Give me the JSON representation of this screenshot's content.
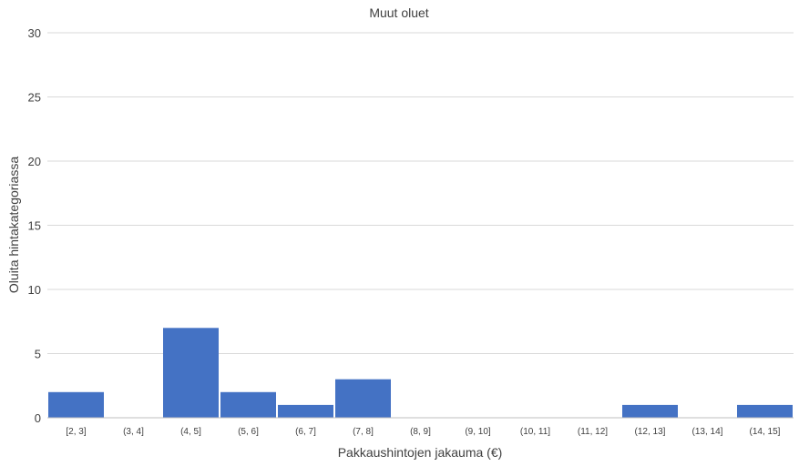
{
  "chart_data": {
    "type": "bar",
    "title": "Muut oluet",
    "xlabel": "Pakkaushintojen jakauma (€)",
    "ylabel": "Oluita hintakategoriassa",
    "categories": [
      "[2, 3]",
      "(3, 4]",
      "(4, 5]",
      "(5, 6]",
      "(6, 7]",
      "(7, 8]",
      "(8, 9]",
      "(9, 10]",
      "(10, 11]",
      "(11, 12]",
      "(12, 13]",
      "(13, 14]",
      "(14, 15]"
    ],
    "values": [
      2,
      0,
      7,
      2,
      1,
      3,
      0,
      0,
      0,
      0,
      1,
      0,
      1
    ],
    "ylim": [
      0,
      30
    ],
    "yticks": [
      "0",
      "5",
      "10",
      "15",
      "20",
      "25",
      "30"
    ],
    "grid": true,
    "bar_color": "#4472C4"
  }
}
